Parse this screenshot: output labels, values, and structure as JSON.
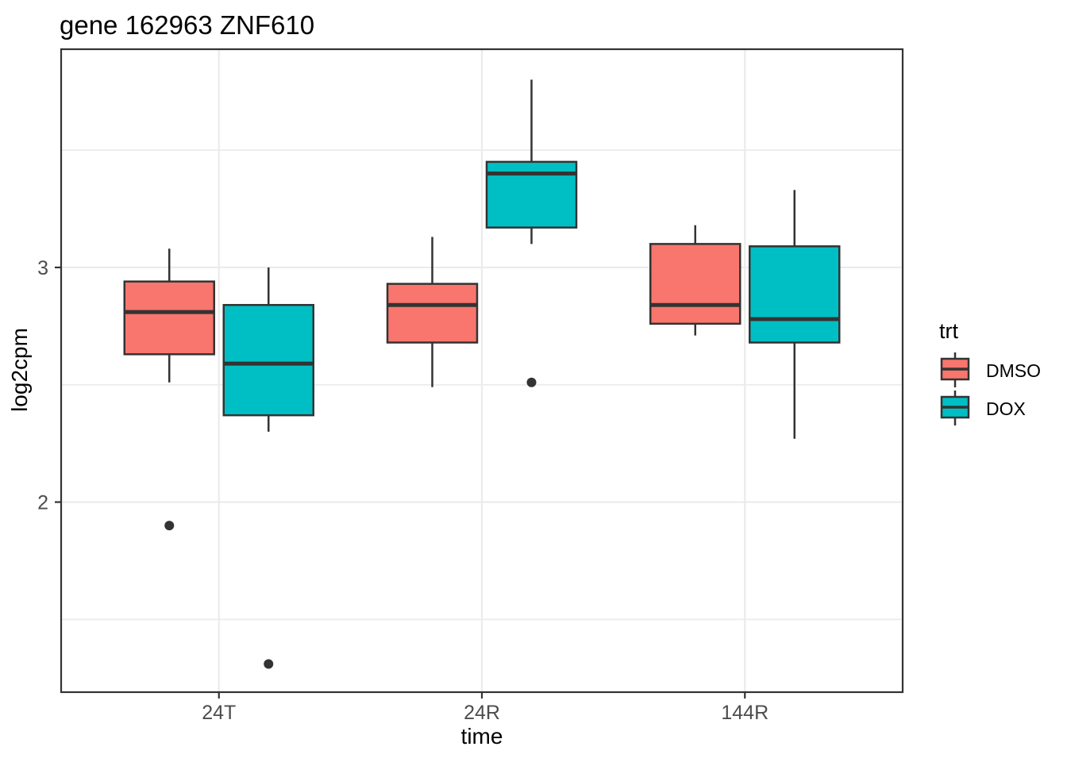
{
  "chart_data": {
    "type": "boxplot",
    "title": "gene 162963 ZNF610",
    "xlabel": "time",
    "ylabel": "log2cpm",
    "categories": [
      "24T",
      "24R",
      "144R"
    ],
    "ylim": [
      1.19,
      3.93
    ],
    "yticks": [
      2,
      3
    ],
    "yticks_minor": [
      1.5,
      2.5,
      3.5
    ],
    "grid": "major+minor",
    "panel_border": true,
    "colors": {
      "grid": "#EBEBEB",
      "panel_border": "#333333",
      "box_stroke": "#333333",
      "axis_text": "#4D4D4D",
      "tick_mark": "#333333",
      "outlier": "#333333",
      "dmso": "#F8766D",
      "dox": "#00BFC4"
    },
    "legend": {
      "title": "trt",
      "position": "right",
      "entries": [
        {
          "label": "DMSO",
          "color": "#F8766D"
        },
        {
          "label": "DOX",
          "color": "#00BFC4"
        }
      ]
    },
    "series": [
      {
        "name": "DMSO",
        "color": "#F8766D",
        "boxes": [
          {
            "category": "24T",
            "whisker_low": 2.51,
            "q1": 2.63,
            "median": 2.81,
            "q3": 2.94,
            "whisker_high": 3.08,
            "outliers": [
              1.9
            ]
          },
          {
            "category": "24R",
            "whisker_low": 2.49,
            "q1": 2.68,
            "median": 2.84,
            "q3": 2.93,
            "whisker_high": 3.13,
            "outliers": []
          },
          {
            "category": "144R",
            "whisker_low": 2.71,
            "q1": 2.76,
            "median": 2.84,
            "q3": 3.1,
            "whisker_high": 3.18,
            "outliers": []
          }
        ]
      },
      {
        "name": "DOX",
        "color": "#00BFC4",
        "boxes": [
          {
            "category": "24T",
            "whisker_low": 2.3,
            "q1": 2.37,
            "median": 2.59,
            "q3": 2.84,
            "whisker_high": 3.0,
            "outliers": [
              1.31
            ]
          },
          {
            "category": "24R",
            "whisker_low": 3.1,
            "q1": 3.17,
            "median": 3.4,
            "q3": 3.45,
            "whisker_high": 3.8,
            "outliers": [
              2.51
            ]
          },
          {
            "category": "144R",
            "whisker_low": 2.27,
            "q1": 2.68,
            "median": 2.78,
            "q3": 3.09,
            "whisker_high": 3.33,
            "outliers": []
          }
        ]
      }
    ]
  }
}
